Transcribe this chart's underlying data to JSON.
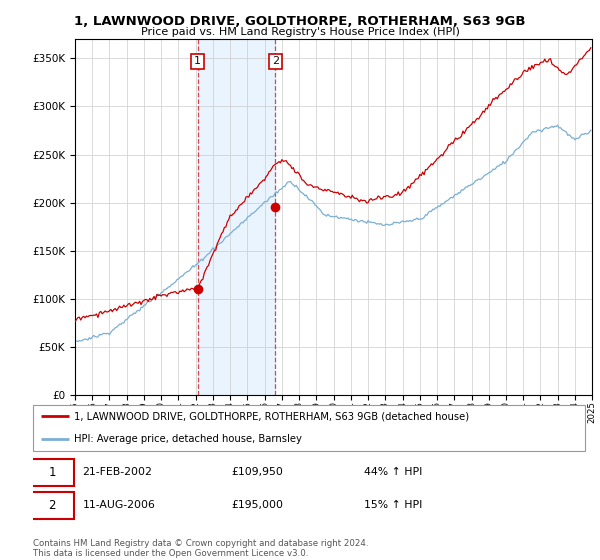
{
  "title": "1, LAWNWOOD DRIVE, GOLDTHORPE, ROTHERHAM, S63 9GB",
  "subtitle": "Price paid vs. HM Land Registry's House Price Index (HPI)",
  "red_label": "1, LAWNWOOD DRIVE, GOLDTHORPE, ROTHERHAM, S63 9GB (detached house)",
  "blue_label": "HPI: Average price, detached house, Barnsley",
  "transaction1_date": "21-FEB-2002",
  "transaction1_price": "£109,950",
  "transaction1_hpi": "44% ↑ HPI",
  "transaction2_date": "11-AUG-2006",
  "transaction2_price": "£195,000",
  "transaction2_hpi": "15% ↑ HPI",
  "footer": "Contains HM Land Registry data © Crown copyright and database right 2024.\nThis data is licensed under the Open Government Licence v3.0.",
  "ylim": [
    0,
    370000
  ],
  "yticks": [
    0,
    50000,
    100000,
    150000,
    200000,
    250000,
    300000,
    350000
  ],
  "background_color": "#ffffff",
  "plot_bg_color": "#ffffff",
  "grid_color": "#cccccc",
  "red_color": "#cc0000",
  "blue_color": "#7bafd4",
  "shade_color": "#ddeeff",
  "marker1_year": 2002.12,
  "marker1_value": 109950,
  "marker2_year": 2006.62,
  "marker2_value": 195000,
  "xmin": 1995,
  "xmax": 2025
}
